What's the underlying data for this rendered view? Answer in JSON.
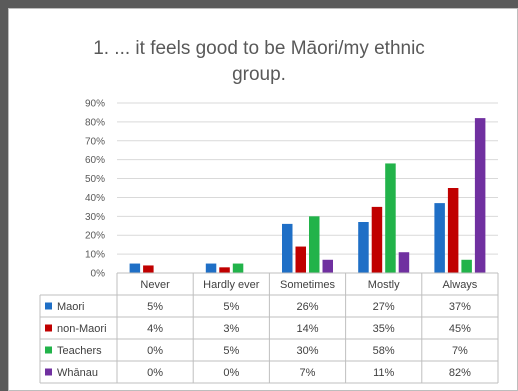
{
  "chart_data": {
    "type": "bar",
    "title_line1": "1. ... it feels good to be Māori/my ethnic",
    "title_line2": "group.",
    "categories": [
      "Never",
      "Hardly ever",
      "Sometimes",
      "Mostly",
      "Always"
    ],
    "ylim": [
      0,
      90
    ],
    "yticks": [
      "0%",
      "10%",
      "20%",
      "30%",
      "40%",
      "50%",
      "60%",
      "70%",
      "80%",
      "90%"
    ],
    "grid": true,
    "legend": "data table (bottom)",
    "series": [
      {
        "name": "Maori",
        "color": "#1f6fc6",
        "values": [
          5,
          5,
          26,
          27,
          37
        ],
        "labels": [
          "5%",
          "5%",
          "26%",
          "27%",
          "37%"
        ]
      },
      {
        "name": "non-Maori",
        "color": "#c00000",
        "values": [
          4,
          3,
          14,
          35,
          45
        ],
        "labels": [
          "4%",
          "3%",
          "14%",
          "35%",
          "45%"
        ]
      },
      {
        "name": "Teachers",
        "color": "#22b34a",
        "values": [
          0,
          5,
          30,
          58,
          7
        ],
        "labels": [
          "0%",
          "5%",
          "30%",
          "58%",
          "7%"
        ]
      },
      {
        "name": "Whānau",
        "color": "#7030a0",
        "values": [
          0,
          0,
          7,
          11,
          82
        ],
        "labels": [
          "0%",
          "0%",
          "7%",
          "11%",
          "82%"
        ]
      }
    ]
  }
}
